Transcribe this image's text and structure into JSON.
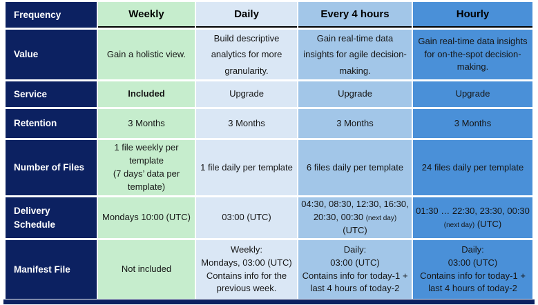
{
  "colors": {
    "navy": "#0c2161",
    "weekly_green": "#c6edcd",
    "daily_blue": "#dae7f5",
    "every4h_blue": "#a2c6e8",
    "hourly_blue": "#4a90d8",
    "header_underline": "#000000",
    "cell_text": "#161616",
    "label_text": "#ffffff"
  },
  "table": {
    "corner_header": "Frequency",
    "row_labels": [
      "Value",
      "Service",
      "Retention",
      "Number of Files",
      "Delivery Schedule",
      "Manifest File"
    ],
    "columns": [
      {
        "header": "Weekly",
        "value": "Gain a holistic view.",
        "service": "Included",
        "retention": "3 Months",
        "number_of_files": "1 file weekly per template\n(7 days’ data per template)",
        "delivery_schedule": [
          {
            "text": "Mondays 10:00 (UTC)"
          }
        ],
        "manifest_file": "Not included"
      },
      {
        "header": "Daily",
        "value": "Build descriptive analytics for more granularity.",
        "service": "Upgrade",
        "retention": "3 Months",
        "number_of_files": "1 file daily per template",
        "delivery_schedule": [
          {
            "text": "03:00 (UTC)"
          }
        ],
        "manifest_file": "Weekly:\nMondays, 03:00 (UTC)\nContains info for the previous week."
      },
      {
        "header": "Every 4 hours",
        "value": "Gain real-time data insights for agile decision-making.",
        "service": "Upgrade",
        "retention": "3 Months",
        "number_of_files": "6 files daily per template",
        "delivery_schedule": [
          {
            "text": "04:30, 08:30, 12:30, 16:30, 20:30, 00:30 "
          },
          {
            "text": "(next day)",
            "small": true
          },
          {
            "text": " (UTC)"
          }
        ],
        "manifest_file": "Daily:\n03:00 (UTC)\nContains info for today-1 + last 4 hours of today-2"
      },
      {
        "header": "Hourly",
        "value": "Gain real-time data insights for on-the-spot decision-making.",
        "service": "Upgrade",
        "retention": "3 Months",
        "number_of_files": "24 files daily per template",
        "delivery_schedule": [
          {
            "text": "01:30 … 22:30, 23:30, 00:30 "
          },
          {
            "text": "(next day)",
            "small": true
          },
          {
            "text": " (UTC)"
          }
        ],
        "manifest_file": "Daily:\n03:00 (UTC)\nContains info for today-1 + last 4 hours of today-2"
      }
    ]
  }
}
